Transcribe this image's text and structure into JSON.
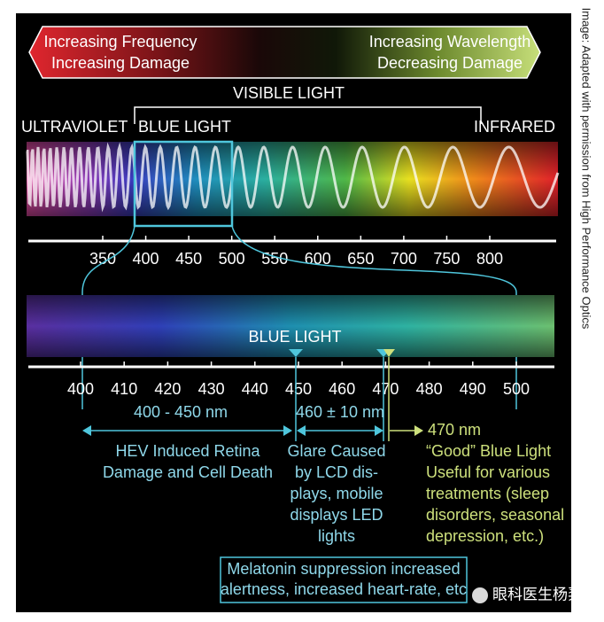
{
  "attribution": "Image: Adapted with permission from High Performance Optics",
  "banner": {
    "left": [
      "Increasing Frequency",
      "Increasing Damage"
    ],
    "right": [
      "Increasing Wavelength",
      "Decreasing Damage"
    ]
  },
  "spectrum": {
    "visible_label": "VISIBLE LIGHT",
    "ultraviolet": "ULTRAVIOLET",
    "blue_light": "BLUE LIGHT",
    "infrared": "INFRARED",
    "ticks": [
      350,
      400,
      450,
      500,
      550,
      600,
      650,
      700,
      750,
      800
    ]
  },
  "zoom": {
    "blue_light": "BLUE LIGHT",
    "ticks": [
      400,
      410,
      420,
      430,
      440,
      450,
      460,
      470,
      480,
      490,
      500
    ]
  },
  "ranges": [
    {
      "label": "400 - 450 nm",
      "description": [
        "HEV Induced Retina",
        "Damage and Cell Death"
      ]
    },
    {
      "label": "460 ± 10 nm",
      "description": [
        "Glare Caused",
        "by LCD dis-",
        "plays, mobile",
        "displays LED",
        "lights"
      ]
    },
    {
      "label": "470 nm",
      "description": [
        "“Good” Blue Light",
        "Useful for various",
        "treatments (sleep",
        "disorders, seasonal",
        "depression, etc.)"
      ]
    }
  ],
  "note": [
    "Melatonin suppression increased",
    "alertness, increased heart-rate, etc"
  ],
  "watermark": "眼科医生杨羿"
}
